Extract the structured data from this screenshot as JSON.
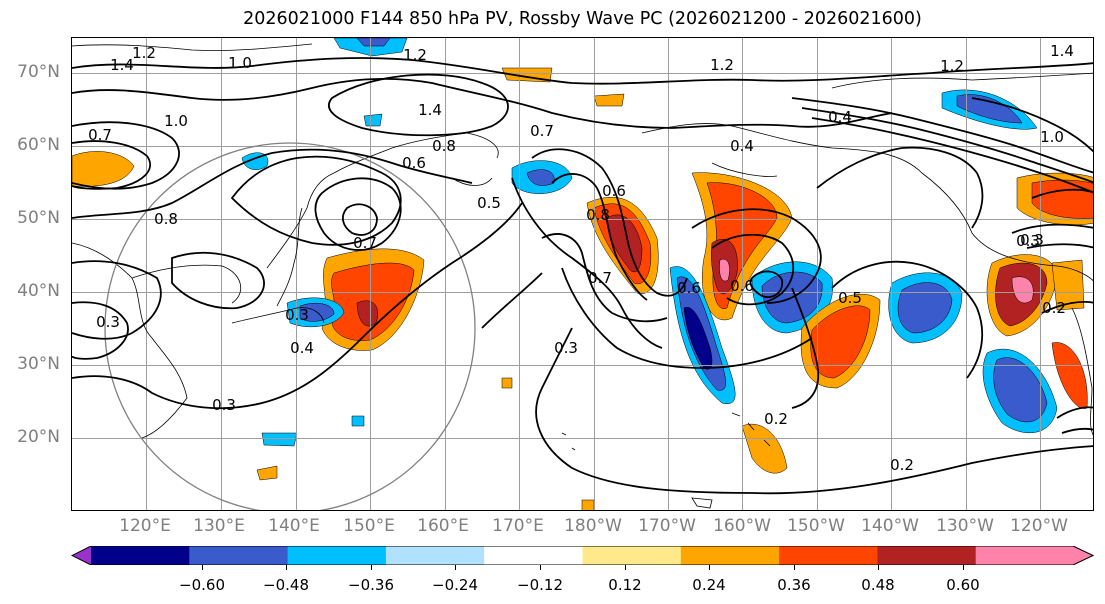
{
  "title": "2026021000 F144 850 hPa PV, Rossby Wave PC (2026021200 - 2026021600)",
  "map": {
    "lat_labels": [
      "70°N",
      "60°N",
      "50°N",
      "40°N",
      "30°N",
      "20°N"
    ],
    "lon_labels": [
      "120°E",
      "130°E",
      "140°E",
      "150°E",
      "160°E",
      "170°E",
      "180°W",
      "170°W",
      "160°W",
      "150°W",
      "140°W",
      "130°W",
      "120°W"
    ],
    "contour_labels": [
      "1.2",
      "1.4",
      "1.0",
      "1.2",
      "1.2",
      "1.2",
      "1.4",
      "1.4",
      "0.7",
      "1.0",
      "0.4",
      "0.7",
      "0.8",
      "0.6",
      "0.4",
      "0.8",
      "0.5",
      "0.7",
      "0.3",
      "0.3",
      "0.6",
      "0.7",
      "0.6",
      "0.3",
      "0.4",
      "0.3",
      "0.8",
      "0.5",
      "0.6",
      "0.3",
      "0.2",
      "0.2",
      "1.0",
      "0.3",
      "0.2"
    ],
    "colors": {
      "contour": "#000000",
      "coast": "#000000",
      "grid": "#9e9e9e",
      "circle": "#808080"
    }
  },
  "colorbar": {
    "tick_labels": [
      "−0.60",
      "−0.48",
      "−0.36",
      "−0.24",
      "−0.12",
      "0.12",
      "0.24",
      "0.36",
      "0.48",
      "0.60"
    ],
    "bins": [
      {
        "color": "#9932cc"
      },
      {
        "color": "#00008b"
      },
      {
        "color": "#3a5bcc"
      },
      {
        "color": "#00bfff"
      },
      {
        "color": "#b0e2ff"
      },
      {
        "color": "#ffffff"
      },
      {
        "color": "#ffe98a"
      },
      {
        "color": "#ffa500"
      },
      {
        "color": "#ff4500"
      },
      {
        "color": "#b22222"
      },
      {
        "color": "#ff82ab"
      },
      {
        "color": "#ff82ab"
      }
    ]
  }
}
